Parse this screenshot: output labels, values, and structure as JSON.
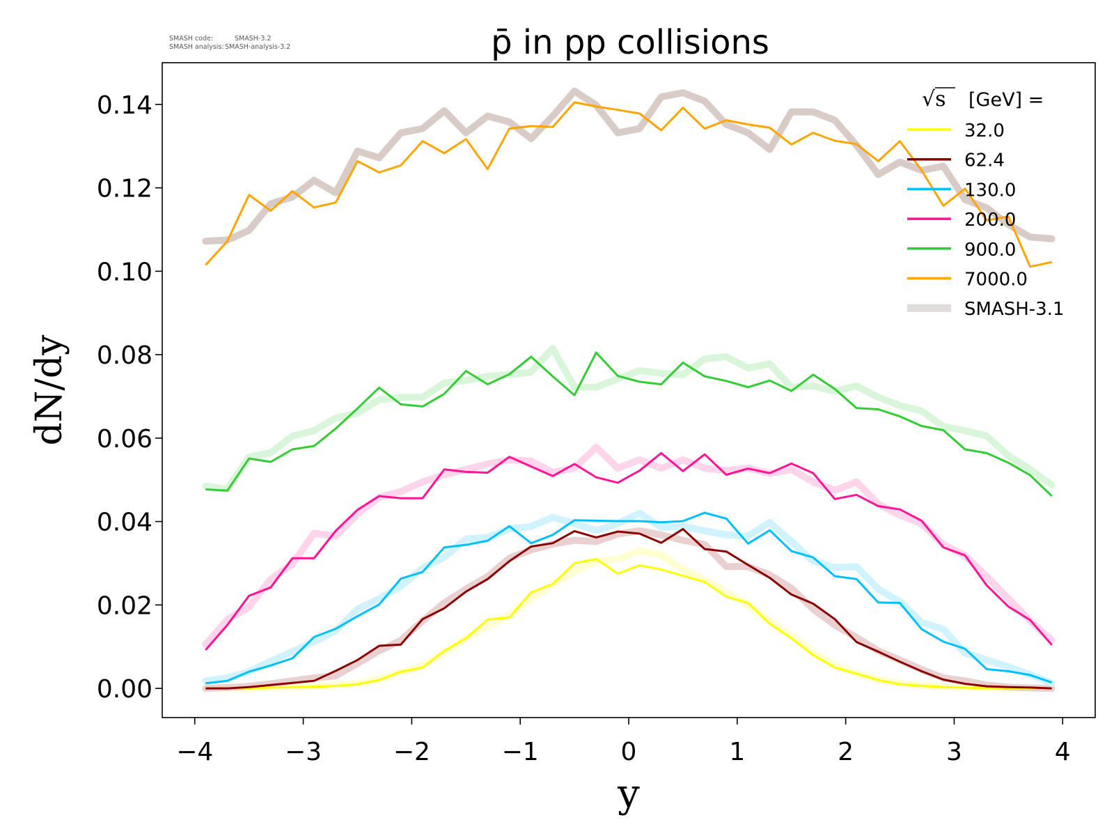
{
  "watermark": {
    "line1_label": "SMASH code:",
    "line1_value": "SMASH-3.2",
    "line2_label": "SMASH analysis:",
    "line2_value": "SMASH-analysis-3.2"
  },
  "chart_data": {
    "type": "line",
    "title": "p̄ in pp collisions",
    "xlabel": "y",
    "ylabel": "dN/dy",
    "xlim": [
      -4.3,
      4.3
    ],
    "ylim": [
      -0.007,
      0.15
    ],
    "xticks": [
      -4,
      -3,
      -2,
      -1,
      0,
      1,
      2,
      3,
      4
    ],
    "xtick_labels": [
      "−4",
      "−3",
      "−2",
      "−1",
      "0",
      "1",
      "2",
      "3",
      "4"
    ],
    "yticks": [
      0.0,
      0.02,
      0.04,
      0.06,
      0.08,
      0.1,
      0.12,
      0.14
    ],
    "ytick_labels": [
      "0.00",
      "0.02",
      "0.04",
      "0.06",
      "0.08",
      "0.10",
      "0.12",
      "0.14"
    ],
    "grid": false,
    "legend_title_root": "√s",
    "legend_title_rest": "[GeV] =",
    "legend_placement": "top-right",
    "reference_label": "SMASH-3.1",
    "x": [
      -3.9,
      -3.7,
      -3.5,
      -3.3,
      -3.1,
      -2.9,
      -2.7,
      -2.5,
      -2.3,
      -2.1,
      -1.9,
      -1.7,
      -1.5,
      -1.3,
      -1.1,
      -0.9,
      -0.7,
      -0.5,
      -0.3,
      -0.1,
      0.1,
      0.3,
      0.5,
      0.7,
      0.9,
      1.1,
      1.3,
      1.5,
      1.7,
      1.9,
      2.1,
      2.3,
      2.5,
      2.7,
      2.9,
      3.1,
      3.3,
      3.5,
      3.7,
      3.9
    ],
    "series": [
      {
        "name": "32.0",
        "color": "#ffff00",
        "values": [
          0.0,
          0.0,
          0.0,
          0.0002,
          0.0003,
          0.0004,
          0.0006,
          0.001,
          0.002,
          0.004,
          0.005,
          0.009,
          0.012,
          0.0165,
          0.017,
          0.023,
          0.025,
          0.03,
          0.031,
          0.0275,
          0.0295,
          0.0285,
          0.027,
          0.0255,
          0.022,
          0.0205,
          0.0155,
          0.012,
          0.008,
          0.005,
          0.0035,
          0.002,
          0.001,
          0.0006,
          0.0003,
          0.0002,
          0.0,
          0.0,
          0.0,
          0.0
        ],
        "reference": [
          0.0,
          0.0,
          0.0,
          0.0002,
          0.0003,
          0.0005,
          0.0008,
          0.0012,
          0.0022,
          0.0038,
          0.0055,
          0.0085,
          0.012,
          0.015,
          0.0175,
          0.0215,
          0.025,
          0.028,
          0.0305,
          0.031,
          0.033,
          0.032,
          0.0285,
          0.026,
          0.023,
          0.02,
          0.016,
          0.0125,
          0.0085,
          0.0055,
          0.0035,
          0.002,
          0.0012,
          0.0007,
          0.0004,
          0.0002,
          0.0001,
          0.0,
          0.0,
          0.0
        ]
      },
      {
        "name": "62.4",
        "color": "#8b0000",
        "values": [
          0.0,
          0.0,
          0.0003,
          0.0008,
          0.0013,
          0.0018,
          0.0042,
          0.0068,
          0.0102,
          0.0105,
          0.0166,
          0.0192,
          0.0232,
          0.0262,
          0.0305,
          0.034,
          0.0348,
          0.0377,
          0.0362,
          0.0376,
          0.0371,
          0.0349,
          0.0382,
          0.0334,
          0.0328,
          0.0296,
          0.0265,
          0.0225,
          0.0203,
          0.0166,
          0.0111,
          0.0088,
          0.0064,
          0.0041,
          0.0021,
          0.0011,
          0.0005,
          0.0003,
          0.0002,
          0.0
        ],
        "reference": [
          0.0,
          0.0002,
          0.0005,
          0.0011,
          0.0018,
          0.0025,
          0.003,
          0.006,
          0.009,
          0.0115,
          0.0162,
          0.0205,
          0.0238,
          0.0268,
          0.0312,
          0.0332,
          0.0346,
          0.0355,
          0.0352,
          0.037,
          0.0378,
          0.0368,
          0.0355,
          0.0345,
          0.0292,
          0.0292,
          0.0272,
          0.024,
          0.019,
          0.0152,
          0.0122,
          0.009,
          0.0068,
          0.0045,
          0.0025,
          0.0018,
          0.0008,
          0.0003,
          0.0001,
          0.0
        ]
      },
      {
        "name": "130.0",
        "color": "#00bfff",
        "values": [
          0.0012,
          0.0018,
          0.004,
          0.0055,
          0.0072,
          0.0123,
          0.0143,
          0.0173,
          0.0201,
          0.0263,
          0.0279,
          0.0338,
          0.0344,
          0.0354,
          0.0389,
          0.0348,
          0.0368,
          0.0403,
          0.0402,
          0.0401,
          0.0401,
          0.0398,
          0.0401,
          0.0421,
          0.0407,
          0.0347,
          0.0379,
          0.0329,
          0.0314,
          0.0269,
          0.0262,
          0.0206,
          0.0205,
          0.0142,
          0.0112,
          0.0095,
          0.0046,
          0.0041,
          0.0032,
          0.0014
        ],
        "reference": [
          0.0018,
          0.0025,
          0.004,
          0.0065,
          0.0088,
          0.0112,
          0.0138,
          0.019,
          0.0215,
          0.0245,
          0.0288,
          0.0315,
          0.0358,
          0.0362,
          0.0382,
          0.0388,
          0.041,
          0.0395,
          0.0378,
          0.0395,
          0.042,
          0.0386,
          0.0388,
          0.0378,
          0.0368,
          0.0365,
          0.0398,
          0.0352,
          0.0305,
          0.029,
          0.0292,
          0.0238,
          0.0208,
          0.0158,
          0.0142,
          0.0085,
          0.0068,
          0.0052,
          0.0033,
          0.0012
        ]
      },
      {
        "name": "200.0",
        "color": "#ff1493",
        "values": [
          0.0092,
          0.0152,
          0.0222,
          0.0242,
          0.0312,
          0.0312,
          0.0378,
          0.0428,
          0.0461,
          0.0456,
          0.0456,
          0.0525,
          0.0519,
          0.0517,
          0.0555,
          0.0532,
          0.0509,
          0.0538,
          0.0506,
          0.0493,
          0.0522,
          0.0564,
          0.0521,
          0.0561,
          0.0512,
          0.0527,
          0.0516,
          0.0539,
          0.0516,
          0.0454,
          0.0464,
          0.0437,
          0.0429,
          0.0402,
          0.0338,
          0.0319,
          0.0247,
          0.0196,
          0.0164,
          0.0104
        ],
        "reference": [
          0.0105,
          0.0165,
          0.0195,
          0.0262,
          0.0298,
          0.0372,
          0.0365,
          0.0418,
          0.0458,
          0.0472,
          0.0495,
          0.0512,
          0.0525,
          0.0538,
          0.0548,
          0.0545,
          0.0518,
          0.0528,
          0.0578,
          0.0528,
          0.0548,
          0.0528,
          0.0548,
          0.0528,
          0.0522,
          0.0528,
          0.0515,
          0.0525,
          0.0495,
          0.0475,
          0.0495,
          0.0442,
          0.0415,
          0.0395,
          0.0345,
          0.0318,
          0.0268,
          0.0215,
          0.0162,
          0.0115
        ]
      },
      {
        "name": "900.0",
        "color": "#32cd32",
        "values": [
          0.0477,
          0.0474,
          0.0551,
          0.0543,
          0.0573,
          0.0581,
          0.0623,
          0.0671,
          0.0721,
          0.0681,
          0.0676,
          0.0706,
          0.0761,
          0.0729,
          0.0753,
          0.0795,
          0.0748,
          0.0703,
          0.0805,
          0.0749,
          0.0735,
          0.0729,
          0.0781,
          0.0748,
          0.0737,
          0.0722,
          0.0738,
          0.0713,
          0.0752,
          0.0718,
          0.0672,
          0.0669,
          0.0652,
          0.0629,
          0.0619,
          0.0573,
          0.0564,
          0.0541,
          0.0511,
          0.0461
        ],
        "reference": [
          0.0485,
          0.0478,
          0.0555,
          0.0565,
          0.0605,
          0.0618,
          0.0648,
          0.066,
          0.0692,
          0.0698,
          0.0698,
          0.0732,
          0.0738,
          0.0748,
          0.0752,
          0.0758,
          0.0815,
          0.0722,
          0.0722,
          0.0742,
          0.0762,
          0.0755,
          0.0752,
          0.079,
          0.0795,
          0.0768,
          0.0778,
          0.0722,
          0.0725,
          0.0712,
          0.0725,
          0.0698,
          0.0678,
          0.0665,
          0.0628,
          0.0618,
          0.0605,
          0.0558,
          0.0525,
          0.0488
        ]
      },
      {
        "name": "7000.0",
        "color": "#ffa500",
        "values": [
          0.1015,
          0.1072,
          0.1183,
          0.1145,
          0.1192,
          0.1153,
          0.1165,
          0.1264,
          0.1237,
          0.1254,
          0.1312,
          0.1283,
          0.1317,
          0.1245,
          0.1342,
          0.1348,
          0.1346,
          0.1405,
          0.1395,
          0.1387,
          0.1378,
          0.1338,
          0.1392,
          0.1342,
          0.1362,
          0.1352,
          0.1344,
          0.1304,
          0.1332,
          0.1313,
          0.1305,
          0.1264,
          0.1312,
          0.1242,
          0.1157,
          0.1198,
          0.1122,
          0.1131,
          0.1011,
          0.1022
        ],
        "reference": [
          0.1072,
          0.1075,
          0.1098,
          0.1162,
          0.1178,
          0.1218,
          0.1188,
          0.1288,
          0.1272,
          0.1332,
          0.1342,
          0.1385,
          0.1332,
          0.1372,
          0.1358,
          0.1318,
          0.1372,
          0.1432,
          0.1398,
          0.1332,
          0.1342,
          0.1418,
          0.1428,
          0.1408,
          0.1352,
          0.1332,
          0.1292,
          0.1382,
          0.1382,
          0.1362,
          0.1302,
          0.1232,
          0.1262,
          0.1242,
          0.1252,
          0.1172,
          0.1152,
          0.1112,
          0.1082,
          0.1078
        ]
      }
    ]
  }
}
